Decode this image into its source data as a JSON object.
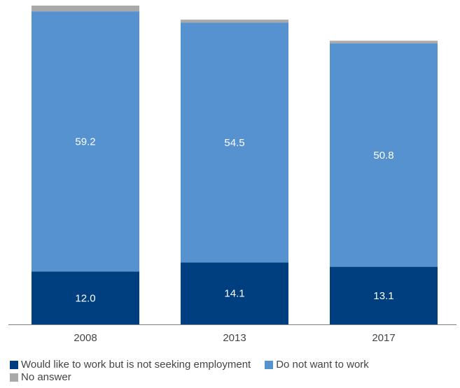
{
  "chart_data": {
    "type": "bar",
    "stacked": true,
    "title": "",
    "xlabel": "",
    "ylabel": "",
    "categories": [
      "2008",
      "2013",
      "2017"
    ],
    "series": [
      {
        "name": "Would like to work but is not seeking employment",
        "values": [
          12.0,
          14.1,
          13.1
        ],
        "color": "#003f7f",
        "labels": [
          "12.0",
          "14.1",
          "13.1"
        ]
      },
      {
        "name": "Do not want to work",
        "values": [
          59.2,
          54.5,
          50.8
        ],
        "color": "#5592cf",
        "labels": [
          "59.2",
          "54.5",
          "50.8"
        ]
      },
      {
        "name": "No answer",
        "values": [
          1.3,
          0.7,
          0.6
        ],
        "color": "#a9a9a9"
      }
    ],
    "ylim": [
      0,
      72.5
    ],
    "grid": false,
    "legend_position": "bottom"
  }
}
